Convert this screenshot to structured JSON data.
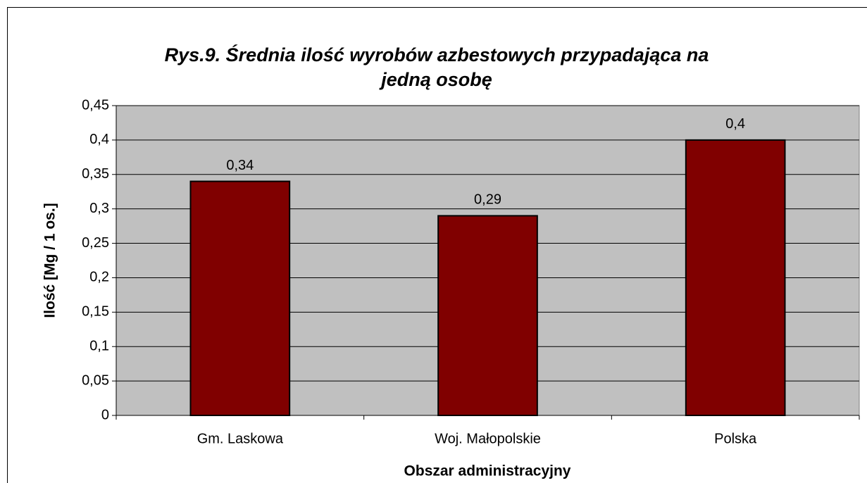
{
  "chart_data": {
    "type": "bar",
    "title": [
      "Rys.9. Średnia ilość wyrobów azbestowych przypadająca na",
      "jedną osobę"
    ],
    "y_label": "Ilość [Mg / 1 os.]",
    "x_label": "Obszar administracyjny",
    "categories": [
      "Gm. Laskowa",
      "Woj. Małopolskie",
      "Polska"
    ],
    "values": [
      0.34,
      0.29,
      0.4
    ],
    "value_labels": [
      "0,34",
      "0,29",
      "0,4"
    ],
    "color": "#800000",
    "ylim": [
      0,
      0.45
    ],
    "yticks": [
      0,
      {
        "value": 0.05,
        "label": "0,05"
      },
      {
        "value": 0.1,
        "label": "0,1"
      },
      {
        "value": 0.15,
        "label": "0,15"
      },
      {
        "value": 0.2,
        "label": "0,2"
      },
      {
        "value": 0.25,
        "label": "0,25"
      },
      {
        "value": 0.3,
        "label": "0,3"
      },
      {
        "value": 0.35,
        "label": "0,35"
      },
      {
        "value": 0.4,
        "label": "0,4"
      },
      {
        "value": 0.45,
        "label": "0,45"
      }
    ],
    "grid": true
  }
}
